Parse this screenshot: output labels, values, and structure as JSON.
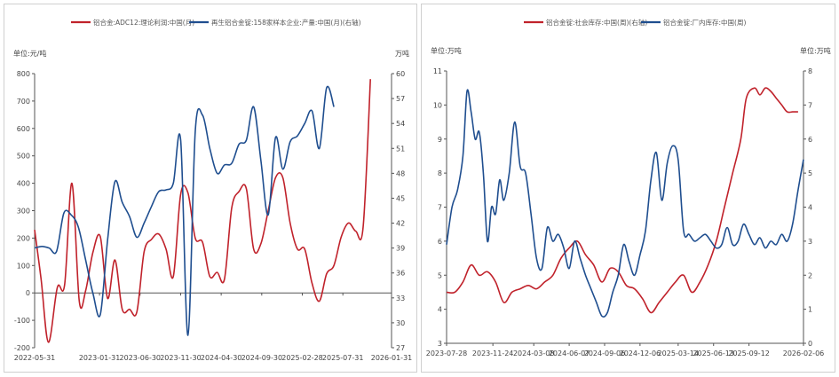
{
  "colors": {
    "red": "#c0222b",
    "blue": "#1f4e8f",
    "axis": "#555555"
  },
  "chart_data": [
    {
      "type": "line",
      "legend": [
        "铝合金:ADC12:理论利润:中国(月)",
        "再生铝合金锭:158家样本企业:产量:中国(月)(右轴)"
      ],
      "ylabel_left": "单位:元/吨",
      "ylabel_right": "万吨",
      "ylim_left": [
        -200,
        800
      ],
      "yticks_left": [
        "800",
        "700",
        "600",
        "500",
        "400",
        "300",
        "200",
        "100",
        "0",
        "-100",
        "-200"
      ],
      "ylim_right": [
        27,
        60
      ],
      "yticks_right": [
        "60",
        "57",
        "54",
        "51",
        "48",
        "45",
        "42",
        "39",
        "36",
        "33",
        "30",
        "27"
      ],
      "x_range": [
        0,
        44
      ],
      "x_ticks": [
        {
          "label": "2022-05-31",
          "x": 0
        },
        {
          "label": "2023-01-31",
          "x": 8
        },
        {
          "label": "2023-06-30",
          "x": 13
        },
        {
          "label": "2023-11-30",
          "x": 18
        },
        {
          "label": "2024-04-30",
          "x": 23
        },
        {
          "label": "2024-09-30",
          "x": 28
        },
        {
          "label": "2025-02-28",
          "x": 33
        },
        {
          "label": "2025-07-31",
          "x": 38
        },
        {
          "label": "2026-01-31",
          "x": 44
        }
      ],
      "series": [
        {
          "name": "铝合金:ADC12:理论利润:中国(月)",
          "axis": "left",
          "points": [
            [
              0,
              230
            ],
            [
              0.8,
              50
            ],
            [
              1.7,
              -180
            ],
            [
              2.8,
              20
            ],
            [
              3.7,
              30
            ],
            [
              4.6,
              400
            ],
            [
              5.5,
              -30
            ],
            [
              6.3,
              10
            ],
            [
              7.2,
              150
            ],
            [
              8.1,
              205
            ],
            [
              9.0,
              -20
            ],
            [
              9.9,
              120
            ],
            [
              10.8,
              -60
            ],
            [
              11.7,
              -60
            ],
            [
              12.6,
              -70
            ],
            [
              13.5,
              150
            ],
            [
              14.4,
              195
            ],
            [
              15.3,
              215
            ],
            [
              16.2,
              160
            ],
            [
              17.1,
              60
            ],
            [
              18.0,
              360
            ],
            [
              18.9,
              365
            ],
            [
              19.8,
              200
            ],
            [
              20.7,
              185
            ],
            [
              21.6,
              60
            ],
            [
              22.5,
              75
            ],
            [
              23.4,
              50
            ],
            [
              24.3,
              310
            ],
            [
              25.2,
              370
            ],
            [
              26.1,
              380
            ],
            [
              27.0,
              160
            ],
            [
              27.9,
              180
            ],
            [
              28.8,
              300
            ],
            [
              29.7,
              420
            ],
            [
              30.6,
              420
            ],
            [
              31.5,
              255
            ],
            [
              32.4,
              160
            ],
            [
              33.3,
              160
            ],
            [
              34.2,
              35
            ],
            [
              35.1,
              -30
            ],
            [
              36.0,
              70
            ],
            [
              36.9,
              100
            ],
            [
              37.8,
              205
            ],
            [
              38.7,
              255
            ],
            [
              39.6,
              225
            ],
            [
              40.5,
              240
            ],
            [
              41.4,
              780
            ]
          ]
        },
        {
          "name": "再生铝合金锭:158家样本企业:产量:中国(月)(右轴)",
          "axis": "right",
          "points": [
            [
              0,
              39.0
            ],
            [
              0.9,
              39.2
            ],
            [
              1.8,
              39.0
            ],
            [
              2.7,
              38.6
            ],
            [
              3.6,
              43.2
            ],
            [
              4.5,
              43.0
            ],
            [
              5.4,
              41.5
            ],
            [
              6.3,
              37.5
            ],
            [
              7.2,
              33.5
            ],
            [
              8.1,
              31.0
            ],
            [
              9.0,
              40.0
            ],
            [
              9.9,
              47.0
            ],
            [
              10.8,
              44.5
            ],
            [
              11.7,
              42.8
            ],
            [
              12.6,
              40.3
            ],
            [
              13.5,
              42.0
            ],
            [
              14.4,
              44.0
            ],
            [
              15.3,
              45.8
            ],
            [
              16.2,
              46.0
            ],
            [
              17.1,
              46.8
            ],
            [
              18.0,
              52.0
            ],
            [
              18.9,
              28.5
            ],
            [
              19.8,
              53.0
            ],
            [
              20.7,
              55.0
            ],
            [
              21.6,
              51.0
            ],
            [
              22.5,
              48.0
            ],
            [
              23.4,
              49.0
            ],
            [
              24.3,
              49.2
            ],
            [
              25.2,
              51.5
            ],
            [
              26.1,
              52.0
            ],
            [
              27.0,
              56.0
            ],
            [
              27.9,
              49.5
            ],
            [
              28.8,
              43.0
            ],
            [
              29.7,
              52.3
            ],
            [
              30.6,
              48.5
            ],
            [
              31.5,
              51.8
            ],
            [
              32.4,
              52.5
            ],
            [
              33.3,
              54.0
            ],
            [
              34.2,
              55.5
            ],
            [
              35.1,
              51.0
            ],
            [
              36.0,
              58.3
            ],
            [
              36.9,
              56.0
            ]
          ]
        }
      ]
    },
    {
      "type": "line",
      "legend": [
        "铝合金锭:社会库存:中国(周)(右轴)",
        "铝合金锭:厂内库存:中国(周)"
      ],
      "ylabel_left": "单位:万吨",
      "ylabel_right": "单位:万吨",
      "ylim_left": [
        3,
        11
      ],
      "yticks_left": [
        "11",
        "10",
        "9",
        "8",
        "7",
        "6",
        "5",
        "4",
        "3"
      ],
      "ylim_right": [
        0,
        8
      ],
      "yticks_right": [
        "8",
        "7",
        "6",
        "5",
        "4",
        "3",
        "2",
        "1",
        "0"
      ],
      "x_range": [
        0,
        131
      ],
      "x_ticks": [
        {
          "label": "2023-07-28",
          "x": 0
        },
        {
          "label": "2023-11-24",
          "x": 17
        },
        {
          "label": "2024-03-08",
          "x": 32
        },
        {
          "label": "2024-06-07",
          "x": 45
        },
        {
          "label": "2024-09-06",
          "x": 58
        },
        {
          "label": "2024-12-06",
          "x": 71
        },
        {
          "label": "2025-03-14",
          "x": 85
        },
        {
          "label": "2025-06-13",
          "x": 98
        },
        {
          "label": "2025-09-12",
          "x": 111
        },
        {
          "label": "2026-02-06",
          "x": 131
        }
      ],
      "series": [
        {
          "name": "铝合金锭:社会库存:中国(周)(右轴)",
          "axis": "right",
          "points": [
            [
              0,
              1.5
            ],
            [
              3,
              1.5
            ],
            [
              6,
              1.8
            ],
            [
              9,
              2.3
            ],
            [
              12,
              2.0
            ],
            [
              15,
              2.1
            ],
            [
              18,
              1.8
            ],
            [
              21,
              1.2
            ],
            [
              24,
              1.5
            ],
            [
              27,
              1.6
            ],
            [
              30,
              1.7
            ],
            [
              33,
              1.6
            ],
            [
              36,
              1.8
            ],
            [
              39,
              2.0
            ],
            [
              42,
              2.5
            ],
            [
              45,
              2.8
            ],
            [
              48,
              3.0
            ],
            [
              51,
              2.6
            ],
            [
              54,
              2.3
            ],
            [
              57,
              1.8
            ],
            [
              60,
              2.2
            ],
            [
              63,
              2.1
            ],
            [
              66,
              1.7
            ],
            [
              69,
              1.6
            ],
            [
              72,
              1.3
            ],
            [
              75,
              0.9
            ],
            [
              78,
              1.2
            ],
            [
              81,
              1.5
            ],
            [
              84,
              1.8
            ],
            [
              87,
              2.0
            ],
            [
              90,
              1.5
            ],
            [
              93,
              1.8
            ],
            [
              96,
              2.3
            ],
            [
              99,
              3.0
            ],
            [
              102,
              4.0
            ],
            [
              105,
              5.0
            ],
            [
              108,
              6.0
            ],
            [
              110,
              7.2
            ],
            [
              113,
              7.5
            ],
            [
              115,
              7.3
            ],
            [
              117,
              7.5
            ],
            [
              119,
              7.4
            ],
            [
              121,
              7.2
            ],
            [
              123,
              7.0
            ],
            [
              125,
              6.8
            ],
            [
              127,
              6.8
            ],
            [
              129,
              6.8
            ]
          ]
        },
        {
          "name": "铝合金锭:厂内库存:中国(周)",
          "axis": "left",
          "points": [
            [
              0,
              5.9
            ],
            [
              2,
              7.0
            ],
            [
              4,
              7.5
            ],
            [
              6,
              8.5
            ],
            [
              7.5,
              10.4
            ],
            [
              9,
              9.8
            ],
            [
              10.5,
              9.0
            ],
            [
              12,
              9.2
            ],
            [
              13.5,
              8.0
            ],
            [
              15,
              6.0
            ],
            [
              16.5,
              7.0
            ],
            [
              18,
              6.8
            ],
            [
              19.5,
              7.8
            ],
            [
              21,
              7.2
            ],
            [
              23,
              8.0
            ],
            [
              25,
              9.5
            ],
            [
              27,
              8.2
            ],
            [
              29,
              8.0
            ],
            [
              31,
              6.8
            ],
            [
              33,
              5.5
            ],
            [
              35,
              5.2
            ],
            [
              37,
              6.4
            ],
            [
              39,
              6.0
            ],
            [
              41,
              6.2
            ],
            [
              43,
              5.8
            ],
            [
              45,
              5.2
            ],
            [
              47,
              6.0
            ],
            [
              49,
              5.5
            ],
            [
              51,
              5.0
            ],
            [
              53,
              4.6
            ],
            [
              55,
              4.2
            ],
            [
              57,
              3.8
            ],
            [
              59,
              3.9
            ],
            [
              61,
              4.5
            ],
            [
              63,
              5.0
            ],
            [
              65,
              5.9
            ],
            [
              67,
              5.4
            ],
            [
              69,
              5.0
            ],
            [
              71,
              5.6
            ],
            [
              73,
              6.3
            ],
            [
              75,
              7.8
            ],
            [
              77,
              8.6
            ],
            [
              79,
              7.2
            ],
            [
              81,
              8.3
            ],
            [
              83,
              8.8
            ],
            [
              85,
              8.4
            ],
            [
              87,
              6.3
            ],
            [
              89,
              6.2
            ],
            [
              91,
              6.0
            ],
            [
              93,
              6.1
            ],
            [
              95,
              6.2
            ],
            [
              97,
              6.0
            ],
            [
              99,
              5.8
            ],
            [
              101,
              5.9
            ],
            [
              103,
              6.4
            ],
            [
              105,
              5.9
            ],
            [
              107,
              6.0
            ],
            [
              109,
              6.5
            ],
            [
              111,
              6.2
            ],
            [
              113,
              5.9
            ],
            [
              115,
              6.1
            ],
            [
              117,
              5.8
            ],
            [
              119,
              6.0
            ],
            [
              121,
              5.9
            ],
            [
              123,
              6.2
            ],
            [
              125,
              6.0
            ],
            [
              127,
              6.5
            ],
            [
              129,
              7.5
            ],
            [
              131,
              8.4
            ]
          ]
        }
      ]
    }
  ]
}
